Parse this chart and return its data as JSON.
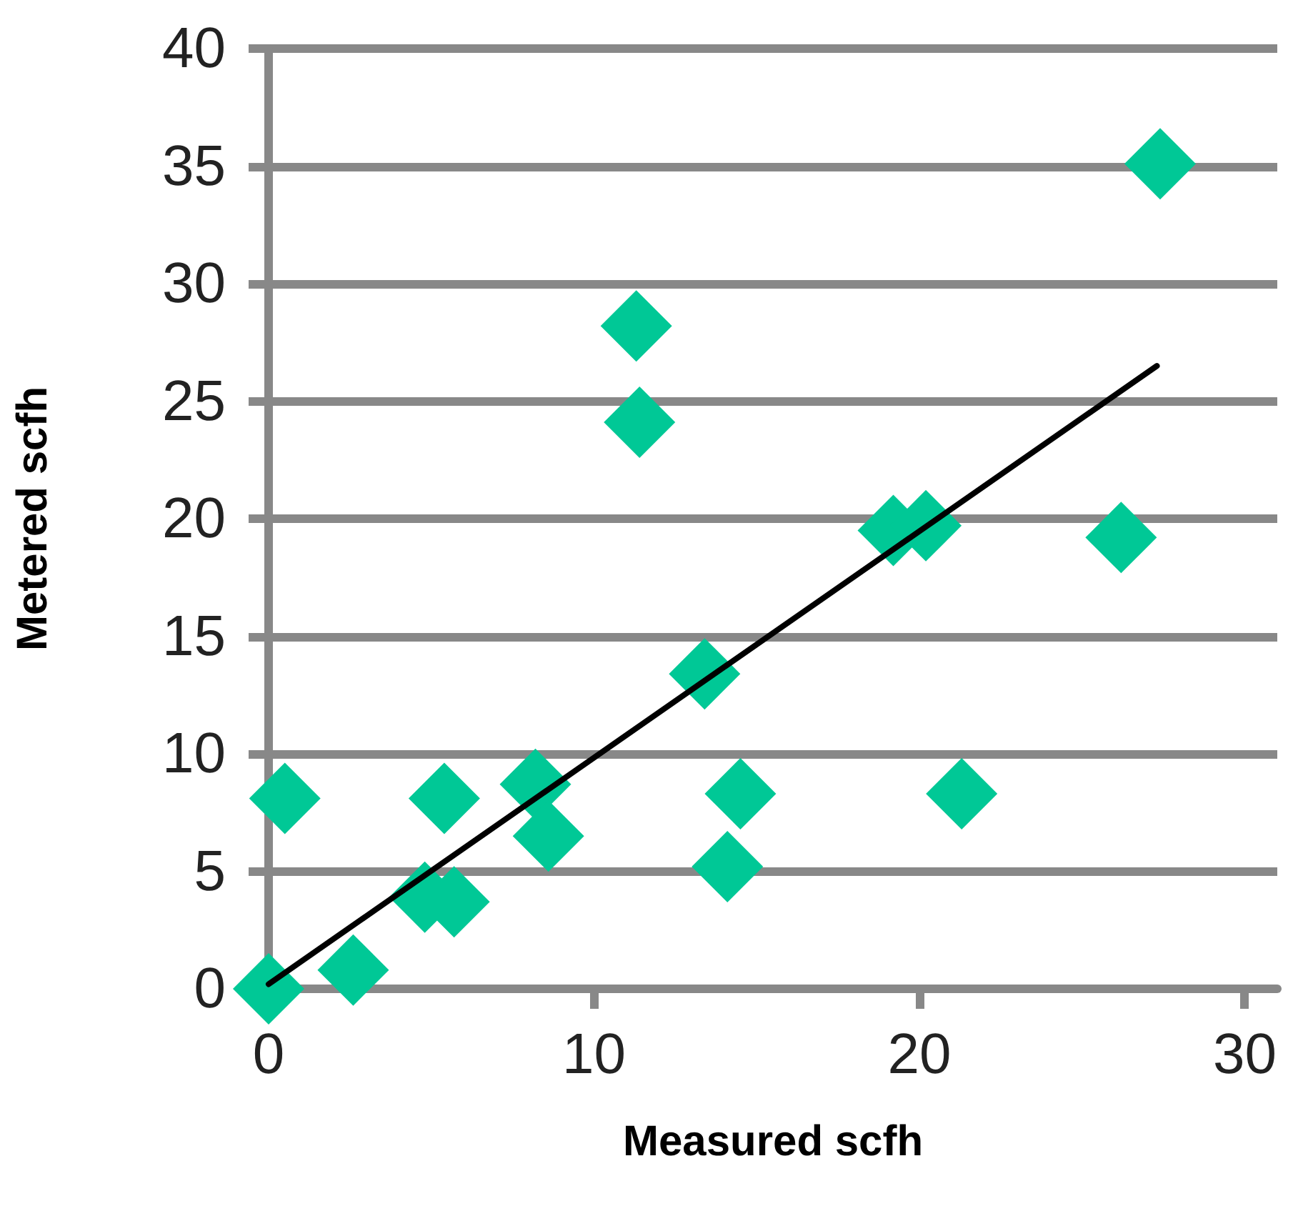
{
  "chart_data": {
    "type": "scatter",
    "xlabel": "Measured scfh",
    "ylabel": "Metered scfh",
    "xlim": [
      0,
      31
    ],
    "xticks": [
      0,
      10,
      20,
      30
    ],
    "ylim": [
      0,
      40
    ],
    "yticks": [
      0,
      5,
      10,
      15,
      20,
      25,
      30,
      35,
      40
    ],
    "grid": "y",
    "marker": "diamond",
    "series": [
      {
        "color": "#00c896",
        "x": [
          0.5,
          5.4,
          8.2,
          8.6,
          14.5,
          14.1,
          4.8,
          5.7,
          0,
          2.6,
          11.3,
          11.4,
          19.2,
          20.2,
          26.2,
          13.4,
          21.3,
          27.4
        ],
        "values": [
          8.1,
          8.1,
          8.7,
          6.5,
          8.3,
          5.2,
          3.9,
          3.7,
          0,
          0.8,
          28.2,
          24.1,
          19.5,
          19.7,
          19.2,
          13.4,
          8.3,
          35.1
        ]
      },
      {
        "type": "line",
        "color": "#000000",
        "marker": "none",
        "x": [
          0,
          27.3
        ],
        "values": [
          0.2,
          26.5
        ]
      }
    ]
  }
}
